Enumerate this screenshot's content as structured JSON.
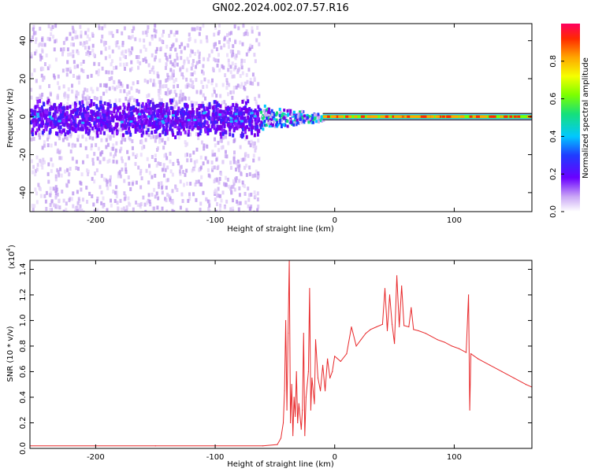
{
  "title": "GN02.2024.002.07.57.R16",
  "chart_data": [
    {
      "type": "heatmap",
      "xlabel": "Height of straight line (km)",
      "ylabel": "Frequency (Hz)",
      "xlim": [
        -255,
        165
      ],
      "ylim": [
        -50,
        49
      ],
      "x_ticks": [
        -200,
        -100,
        0,
        100
      ],
      "y_ticks": [
        -40,
        -20,
        0,
        20,
        40
      ],
      "colorbar": {
        "label": "Normalized spectral amplitude",
        "range": [
          0,
          1
        ],
        "ticks": [
          0.0,
          0.2,
          0.4,
          0.6,
          0.8
        ]
      },
      "features": {
        "noise_region_x": [
          -255,
          -64
        ],
        "noise_band_hz": [
          -10,
          10
        ],
        "transition_x": [
          -64,
          -10
        ],
        "carrier_x": [
          -10,
          165
        ],
        "carrier_freq_hz": 0
      }
    },
    {
      "type": "line",
      "xlabel": "Height of straight line (km)",
      "ylabel": "SNR (10 * v/v)",
      "y_multiplier": "(x10",
      "y_multiplier_exp": "4",
      "xlim": [
        -255,
        165
      ],
      "ylim": [
        0,
        1.47
      ],
      "x_ticks": [
        -200,
        -100,
        0,
        100
      ],
      "y_ticks": [
        0.0,
        0.2,
        0.4,
        0.6,
        0.8,
        1.0,
        1.2,
        1.4
      ],
      "series": [
        {
          "color": "#e8292b",
          "points": [
            [
              -255,
              0.02
            ],
            [
              -200,
              0.02
            ],
            [
              -150,
              0.02
            ],
            [
              -100,
              0.02
            ],
            [
              -60,
              0.02
            ],
            [
              -48,
              0.03
            ],
            [
              -45,
              0.08
            ],
            [
              -43,
              0.2
            ],
            [
              -42,
              0.45
            ],
            [
              -41,
              1.0
            ],
            [
              -40,
              0.3
            ],
            [
              -39,
              0.9
            ],
            [
              -38,
              1.47
            ],
            [
              -37,
              0.2
            ],
            [
              -36,
              0.5
            ],
            [
              -35,
              0.1
            ],
            [
              -34,
              0.4
            ],
            [
              -33,
              0.25
            ],
            [
              -32,
              0.6
            ],
            [
              -31,
              0.2
            ],
            [
              -30,
              0.35
            ],
            [
              -28,
              0.15
            ],
            [
              -27,
              0.3
            ],
            [
              -26,
              0.9
            ],
            [
              -25,
              0.1
            ],
            [
              -24,
              0.4
            ],
            [
              -22,
              0.6
            ],
            [
              -21,
              1.25
            ],
            [
              -20,
              0.3
            ],
            [
              -19,
              0.55
            ],
            [
              -17,
              0.35
            ],
            [
              -16,
              0.85
            ],
            [
              -14,
              0.55
            ],
            [
              -12,
              0.45
            ],
            [
              -10,
              0.65
            ],
            [
              -8,
              0.45
            ],
            [
              -6,
              0.7
            ],
            [
              -4,
              0.55
            ],
            [
              -2,
              0.6
            ],
            [
              0,
              0.72
            ],
            [
              5,
              0.68
            ],
            [
              10,
              0.74
            ],
            [
              14,
              0.95
            ],
            [
              18,
              0.8
            ],
            [
              22,
              0.85
            ],
            [
              26,
              0.9
            ],
            [
              30,
              0.93
            ],
            [
              35,
              0.95
            ],
            [
              40,
              0.97
            ],
            [
              42,
              1.25
            ],
            [
              44,
              0.92
            ],
            [
              46,
              1.2
            ],
            [
              48,
              0.97
            ],
            [
              50,
              0.82
            ],
            [
              52,
              1.35
            ],
            [
              54,
              0.95
            ],
            [
              56,
              1.27
            ],
            [
              58,
              0.96
            ],
            [
              62,
              0.95
            ],
            [
              64,
              1.1
            ],
            [
              66,
              0.93
            ],
            [
              70,
              0.92
            ],
            [
              76,
              0.9
            ],
            [
              80,
              0.88
            ],
            [
              86,
              0.85
            ],
            [
              92,
              0.83
            ],
            [
              98,
              0.8
            ],
            [
              104,
              0.78
            ],
            [
              110,
              0.75
            ],
            [
              112,
              1.2
            ],
            [
              113,
              0.3
            ],
            [
              114,
              0.74
            ],
            [
              120,
              0.7
            ],
            [
              130,
              0.65
            ],
            [
              140,
              0.6
            ],
            [
              150,
              0.55
            ],
            [
              160,
              0.5
            ],
            [
              165,
              0.48
            ]
          ]
        }
      ]
    }
  ]
}
